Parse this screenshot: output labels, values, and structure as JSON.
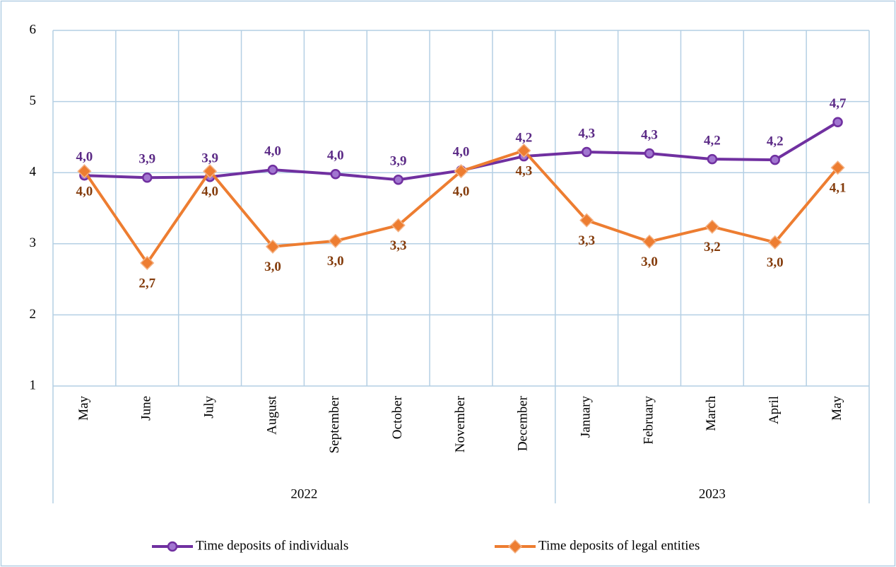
{
  "chart_data": {
    "type": "line",
    "categories": [
      "May",
      "June",
      "July",
      "August",
      "September",
      "October",
      "November",
      "December",
      "January",
      "February",
      "March",
      "April",
      "May"
    ],
    "category_years": [
      "2022",
      "2022",
      "2022",
      "2022",
      "2022",
      "2022",
      "2022",
      "2022",
      "2023",
      "2023",
      "2023",
      "2023",
      "2023"
    ],
    "series": [
      {
        "name": "Time deposits of individuals",
        "color": "#7030a0",
        "marker": "circle",
        "values": [
          3.96,
          3.93,
          3.94,
          4.04,
          3.98,
          3.9,
          4.03,
          4.23,
          4.29,
          4.27,
          4.19,
          4.18,
          4.71
        ],
        "value_labels": [
          "4,0",
          "3,9",
          "3,9",
          "4,0",
          "4,0",
          "3,9",
          "4,0",
          "4,2",
          "4,3",
          "4,3",
          "4,2",
          "4,2",
          "4,7"
        ]
      },
      {
        "name": "Time deposits of legal entities",
        "color": "#ed7d31",
        "marker": "diamond",
        "values": [
          4.02,
          2.73,
          4.02,
          2.96,
          3.04,
          3.26,
          4.02,
          4.31,
          3.33,
          3.03,
          3.24,
          3.02,
          4.07
        ],
        "value_labels": [
          "4,0",
          "2,7",
          "4,0",
          "3,0",
          "3,0",
          "3,3",
          "4,0",
          "4,3",
          "3,3",
          "3,0",
          "3,2",
          "3,0",
          "4,1"
        ]
      }
    ],
    "ylim": [
      1,
      6
    ],
    "yticks": [
      1,
      2,
      3,
      4,
      5,
      6
    ],
    "grid": true,
    "legend": "bottom"
  }
}
